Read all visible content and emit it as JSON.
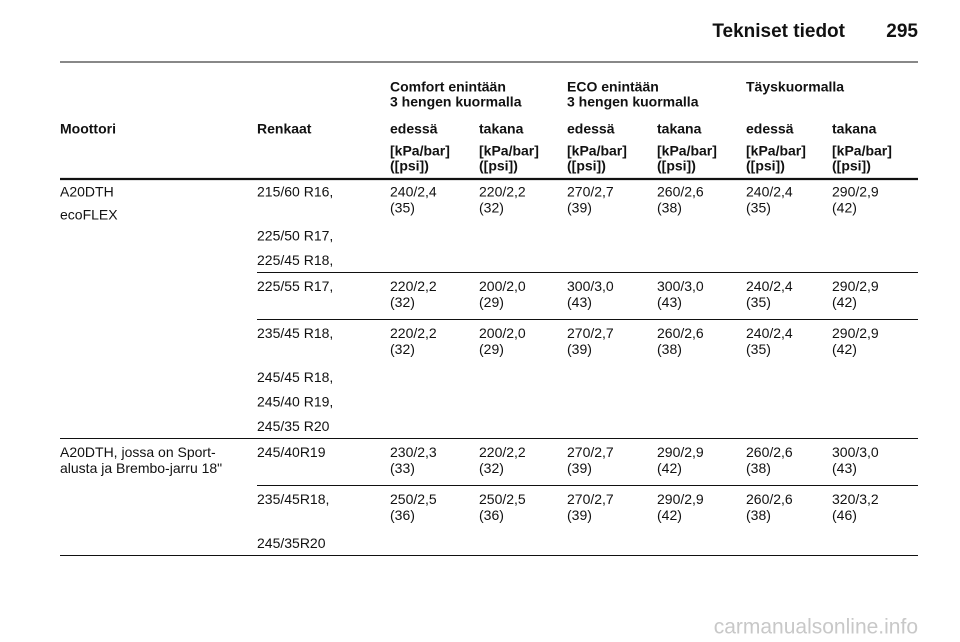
{
  "header": {
    "title": "Tekniset tiedot",
    "page": "295"
  },
  "table": {
    "group_headers": [
      [
        "Comfort enintään",
        "3 hengen kuormalla"
      ],
      [
        "ECO enintään",
        "3 hengen kuormalla"
      ],
      [
        "Täyskuormalla"
      ]
    ],
    "column_headers": [
      "Moottori",
      "Renkaat",
      "edessä",
      "takana",
      "edessä",
      "takana",
      "edessä",
      "takana"
    ],
    "unit_headers": [
      [
        "[kPa/bar]",
        "([psi])"
      ],
      [
        "[kPa/bar]",
        "([psi])"
      ],
      [
        "[kPa/bar]",
        "([psi])"
      ],
      [
        "[kPa/bar]",
        "([psi])"
      ],
      [
        "[kPa/bar]",
        "([psi])"
      ],
      [
        "[kPa/bar]",
        "([psi])"
      ]
    ],
    "blocks": [
      {
        "engine": [
          "A20DTH",
          "ecoFLEX"
        ],
        "subrows": [
          {
            "tyres": [
              "215/60 R16,",
              "225/50 R17,",
              "225/45 R18,"
            ],
            "values": [
              [
                "240/2,4",
                "(35)"
              ],
              [
                "220/2,2",
                "(32)"
              ],
              [
                "270/2,7",
                "(39)"
              ],
              [
                "260/2,6",
                "(38)"
              ],
              [
                "240/2,4",
                "(35)"
              ],
              [
                "290/2,9",
                "(42)"
              ]
            ]
          },
          {
            "tyres": [
              "225/55 R17,"
            ],
            "values": [
              [
                "220/2,2",
                "(32)"
              ],
              [
                "200/2,0",
                "(29)"
              ],
              [
                "300/3,0",
                "(43)"
              ],
              [
                "300/3,0",
                "(43)"
              ],
              [
                "240/2,4",
                "(35)"
              ],
              [
                "290/2,9",
                "(42)"
              ]
            ]
          },
          {
            "tyres": [
              "235/45 R18,",
              "245/45 R18,",
              "245/40 R19,",
              "245/35 R20"
            ],
            "values": [
              [
                "220/2,2",
                "(32)"
              ],
              [
                "200/2,0",
                "(29)"
              ],
              [
                "270/2,7",
                "(39)"
              ],
              [
                "260/2,6",
                "(38)"
              ],
              [
                "240/2,4",
                "(35)"
              ],
              [
                "290/2,9",
                "(42)"
              ]
            ]
          }
        ]
      },
      {
        "engine": [
          "A20DTH, jossa on Sport-",
          "alusta ja Brembo-jarru 18\""
        ],
        "subrows": [
          {
            "tyres": [
              "245/40R19"
            ],
            "values": [
              [
                "230/2,3",
                "(33)"
              ],
              [
                "220/2,2",
                "(32)"
              ],
              [
                "270/2,7",
                "(39)"
              ],
              [
                "290/2,9",
                "(42)"
              ],
              [
                "260/2,6",
                "(38)"
              ],
              [
                "300/3,0",
                "(43)"
              ]
            ]
          },
          {
            "tyres": [
              "235/45R18,",
              "245/35R20"
            ],
            "values": [
              [
                "250/2,5",
                "(36)"
              ],
              [
                "250/2,5",
                "(36)"
              ],
              [
                "270/2,7",
                "(39)"
              ],
              [
                "290/2,9",
                "(42)"
              ],
              [
                "260/2,6",
                "(38)"
              ],
              [
                "320/3,2",
                "(46)"
              ]
            ]
          }
        ]
      }
    ]
  },
  "footer": "carmanualsonline.info"
}
